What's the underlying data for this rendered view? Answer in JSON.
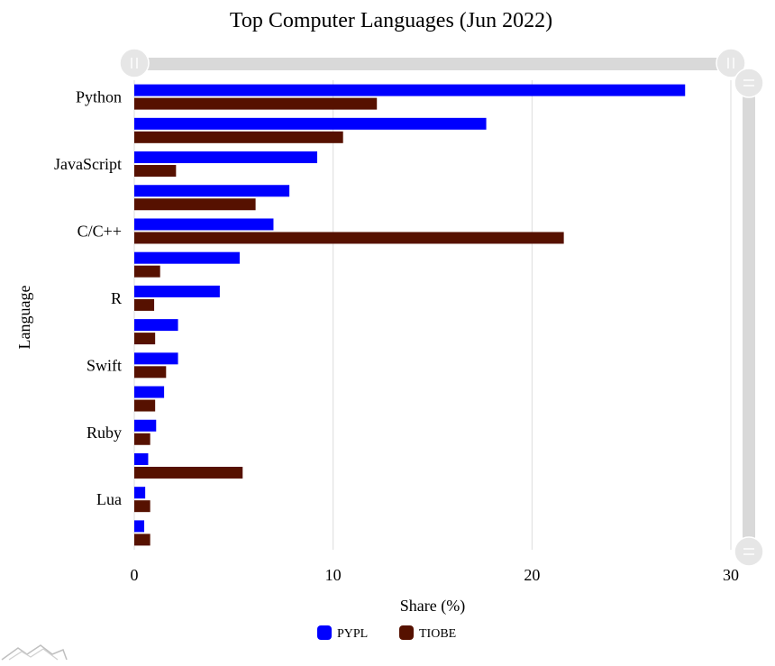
{
  "chart_data": {
    "type": "bar",
    "orientation": "horizontal",
    "title": "Top Computer Languages (Jun 2022)",
    "xlabel": "Share (%)",
    "ylabel": "Language",
    "xlim": [
      0,
      30
    ],
    "xticks": [
      0,
      10,
      20,
      30
    ],
    "grid": true,
    "legend_position": "bottom-center",
    "categories": [
      "Python",
      "",
      "JavaScript",
      "",
      "C/C++",
      "",
      "R",
      "",
      "Swift",
      "",
      "Ruby",
      "",
      "Lua",
      ""
    ],
    "series": [
      {
        "name": "PYPL",
        "color": "#0000ff",
        "values": [
          27.7,
          17.7,
          9.2,
          7.8,
          7.0,
          5.3,
          4.3,
          2.2,
          2.2,
          1.5,
          1.1,
          0.7,
          0.55,
          0.5
        ]
      },
      {
        "name": "TIOBE",
        "color": "#561100",
        "values": [
          12.2,
          10.5,
          2.1,
          6.1,
          21.6,
          1.3,
          1.0,
          1.05,
          1.6,
          1.05,
          0.8,
          5.45,
          0.8,
          0.8
        ]
      }
    ]
  },
  "colors": {
    "gridline": "#dddddd",
    "scrollbar": "#d9d9d9",
    "handle_fill": "#e6e6e6",
    "handle_stroke": "#ffffff"
  },
  "icons": {
    "scroll_handle_left": "grip-icon",
    "scroll_handle_right": "grip-icon",
    "scroll_handle_top": "grip-icon",
    "scroll_handle_bottom": "grip-icon",
    "brand_logo": "mountain-logo-icon"
  }
}
